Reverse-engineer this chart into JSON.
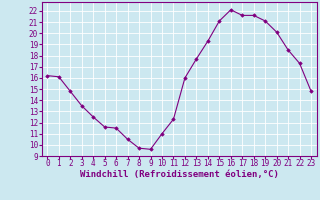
{
  "x": [
    0,
    1,
    2,
    3,
    4,
    5,
    6,
    7,
    8,
    9,
    10,
    11,
    12,
    13,
    14,
    15,
    16,
    17,
    18,
    19,
    20,
    21,
    22,
    23
  ],
  "y": [
    16.2,
    16.1,
    14.8,
    13.5,
    12.5,
    11.6,
    11.5,
    10.5,
    9.7,
    9.6,
    11.0,
    12.3,
    16.0,
    17.7,
    19.3,
    21.1,
    22.1,
    21.6,
    21.6,
    21.1,
    20.1,
    18.5,
    17.3,
    14.8
  ],
  "xlim": [
    -0.5,
    23.5
  ],
  "ylim": [
    9,
    22.8
  ],
  "yticks": [
    9,
    10,
    11,
    12,
    13,
    14,
    15,
    16,
    17,
    18,
    19,
    20,
    21,
    22
  ],
  "xticks": [
    0,
    1,
    2,
    3,
    4,
    5,
    6,
    7,
    8,
    9,
    10,
    11,
    12,
    13,
    14,
    15,
    16,
    17,
    18,
    19,
    20,
    21,
    22,
    23
  ],
  "line_color": "#800080",
  "marker": "D",
  "marker_size": 1.8,
  "bg_color": "#cce8f0",
  "grid_color": "#ffffff",
  "xlabel": "Windchill (Refroidissement éolien,°C)",
  "xlabel_fontsize": 6.5,
  "tick_fontsize": 5.5,
  "line_width": 0.8
}
